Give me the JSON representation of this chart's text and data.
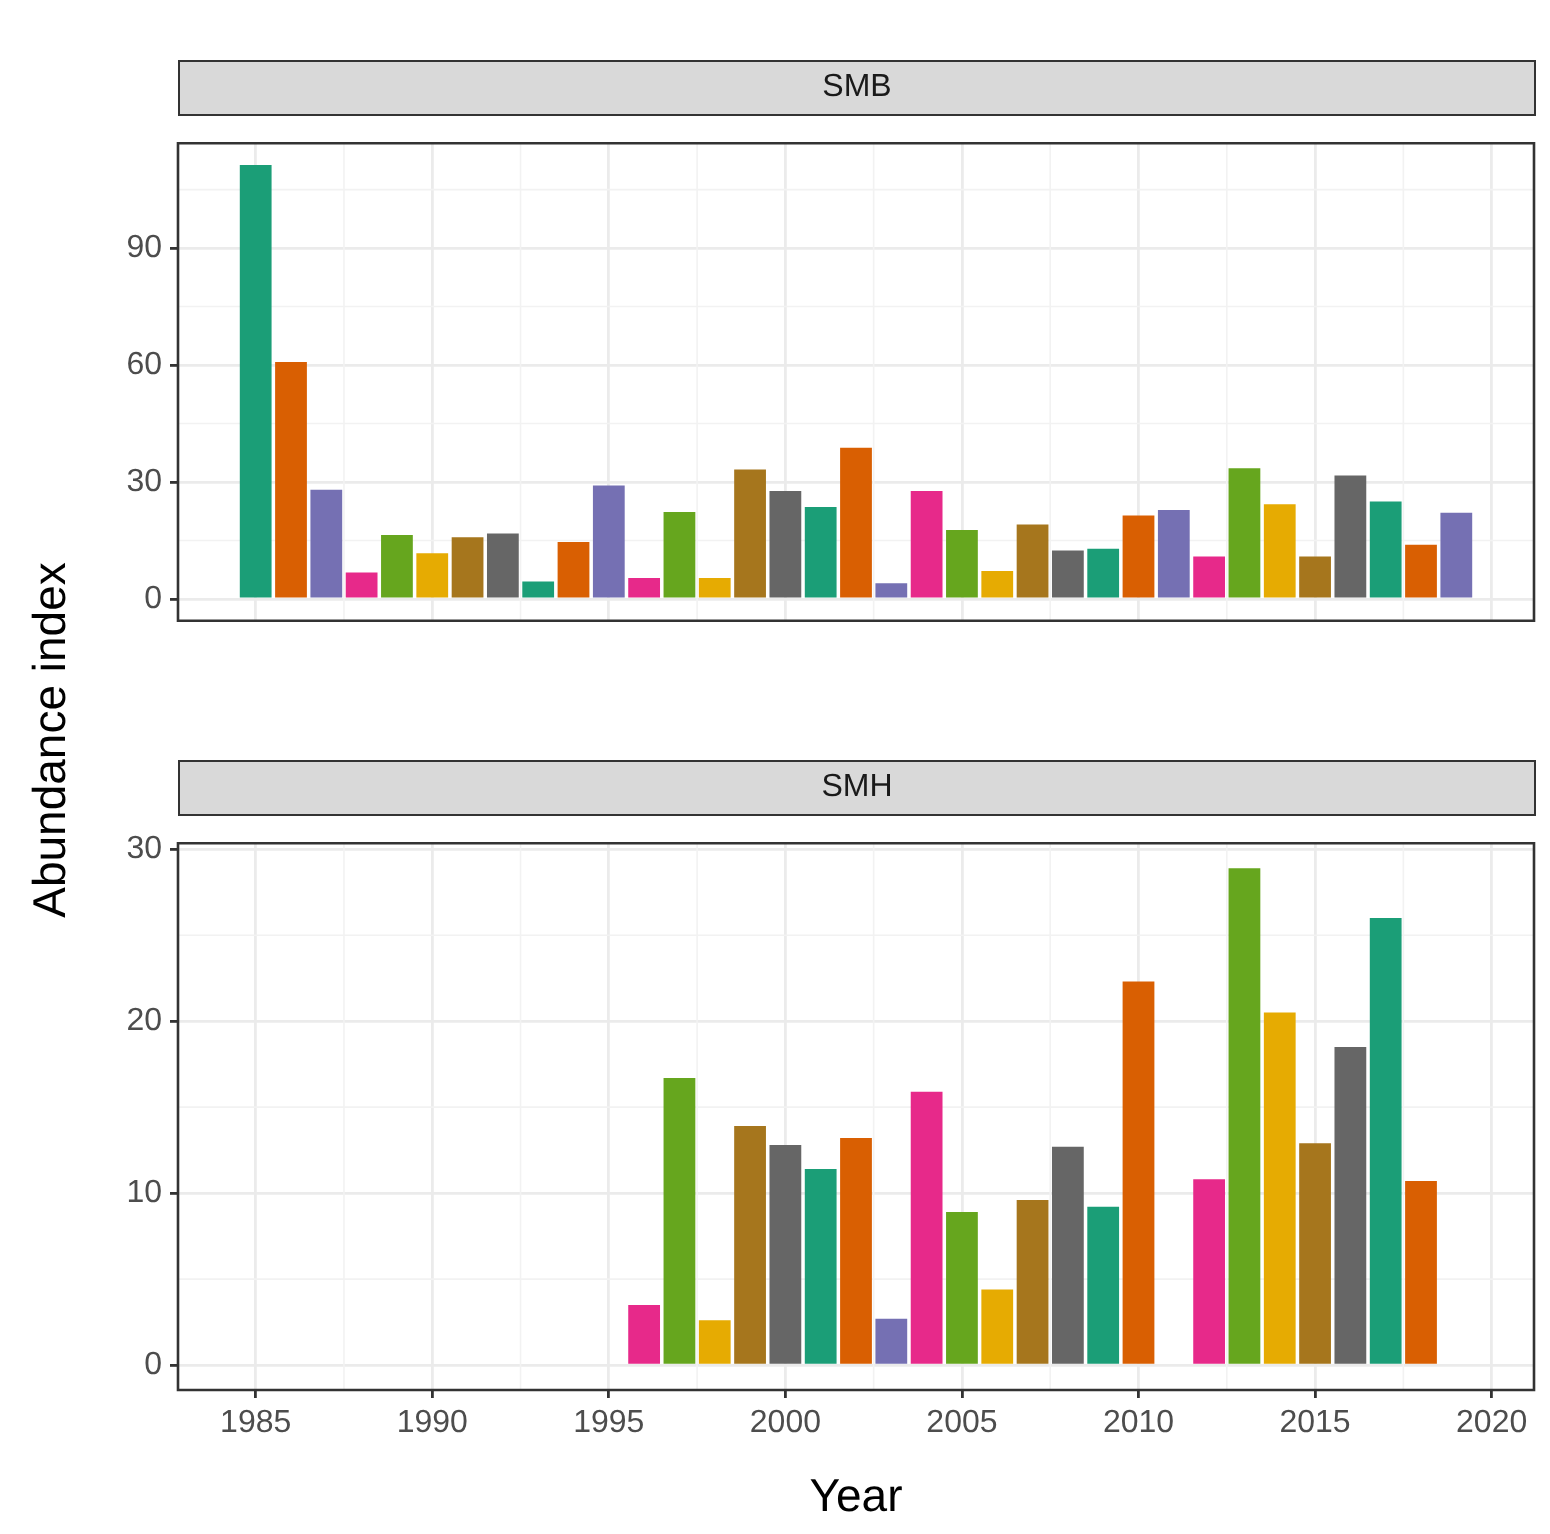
{
  "chart_data": [
    {
      "type": "bar",
      "title": "SMB",
      "ylabel": "Abundance index",
      "tick_labels": "y",
      "grid": true,
      "x": [
        1985,
        1986,
        1987,
        1988,
        1989,
        1990,
        1991,
        1992,
        1993,
        1994,
        1995,
        1996,
        1997,
        1998,
        1999,
        2000,
        2001,
        2002,
        2003,
        2004,
        2005,
        2006,
        2007,
        2008,
        2009,
        2010,
        2011,
        2012,
        2013,
        2014,
        2015,
        2016,
        2017,
        2018,
        2019
      ],
      "values": [
        111.3,
        60.8,
        28.0,
        6.8,
        16.4,
        11.7,
        15.8,
        16.8,
        4.5,
        14.6,
        29.1,
        5.4,
        22.3,
        5.4,
        33.2,
        27.7,
        23.6,
        38.8,
        4.0,
        27.7,
        17.7,
        7.2,
        19.1,
        12.4,
        12.9,
        21.4,
        22.8,
        10.9,
        33.5,
        24.3,
        10.9,
        31.7,
        25.0,
        13.9,
        22.1
      ],
      "colors": [
        "#1b9e77",
        "#d95f02",
        "#7570b3",
        "#e7298a",
        "#66a61e",
        "#e6ab02",
        "#a6761d",
        "#666666",
        "#1b9e77",
        "#d95f02",
        "#7570b3",
        "#e7298a",
        "#66a61e",
        "#e6ab02",
        "#a6761d",
        "#666666",
        "#1b9e77",
        "#d95f02",
        "#7570b3",
        "#e7298a",
        "#66a61e",
        "#e6ab02",
        "#a6761d",
        "#666666",
        "#1b9e77",
        "#d95f02",
        "#7570b3",
        "#e7298a",
        "#66a61e",
        "#e6ab02",
        "#a6761d",
        "#666666",
        "#1b9e77",
        "#d95f02",
        "#7570b3"
      ],
      "xlim": [
        1982.8,
        2021.2
      ],
      "xticks": [
        1985,
        1990,
        1995,
        2000,
        2005,
        2010,
        2015,
        2020
      ],
      "ylim": [
        -5.6,
        116.9
      ],
      "yticks": [
        0,
        30,
        60,
        90
      ]
    },
    {
      "type": "bar",
      "title": "SMH",
      "xlabel": "Year",
      "grid": true,
      "x": [
        1996,
        1997,
        1998,
        1999,
        2000,
        2001,
        2002,
        2003,
        2004,
        2005,
        2006,
        2007,
        2008,
        2009,
        2010,
        2011,
        2012,
        2013,
        2014,
        2015,
        2016,
        2017,
        2018
      ],
      "values": [
        3.5,
        16.7,
        2.6,
        13.9,
        12.8,
        11.4,
        13.2,
        2.7,
        15.9,
        8.9,
        4.4,
        9.6,
        12.7,
        9.2,
        22.3,
        null,
        10.8,
        28.9,
        20.5,
        12.9,
        18.5,
        26.0,
        10.7
      ],
      "colors": [
        "#e7298a",
        "#66a61e",
        "#e6ab02",
        "#a6761d",
        "#666666",
        "#1b9e77",
        "#d95f02",
        "#7570b3",
        "#e7298a",
        "#66a61e",
        "#e6ab02",
        "#a6761d",
        "#666666",
        "#1b9e77",
        "#d95f02",
        "#7570b3",
        "#e7298a",
        "#66a61e",
        "#e6ab02",
        "#a6761d",
        "#666666",
        "#1b9e77",
        "#d95f02"
      ],
      "xlim": [
        1982.8,
        2021.2
      ],
      "xticks": [
        1985,
        1990,
        1995,
        2000,
        2005,
        2010,
        2015,
        2020
      ],
      "ylim": [
        -1.45,
        30.35
      ],
      "yticks": [
        0,
        10,
        20,
        30
      ]
    }
  ]
}
